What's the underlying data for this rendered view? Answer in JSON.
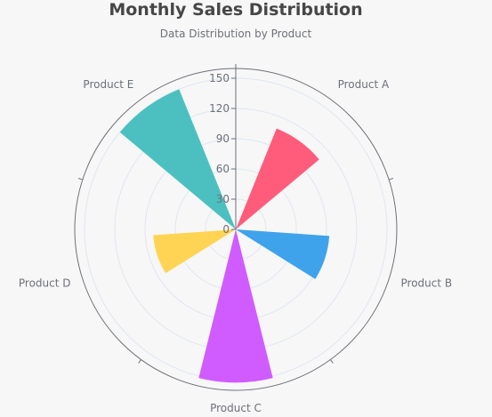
{
  "chart_data": {
    "type": "polar-bar",
    "title": "Monthly Sales Distribution",
    "subtitle": "Data Distribution by Product",
    "categories": [
      "Product A",
      "Product B",
      "Product C",
      "Product D",
      "Product E"
    ],
    "values": [
      108,
      93,
      152,
      82,
      150
    ],
    "colors": [
      "#ff5c7c",
      "#3fa3eb",
      "#d05cff",
      "#ffd454",
      "#4cc0c0"
    ],
    "radial_axis": {
      "min": 0,
      "max": 150,
      "ticks": [
        0,
        30,
        60,
        90,
        120,
        150
      ]
    },
    "grid": true
  }
}
